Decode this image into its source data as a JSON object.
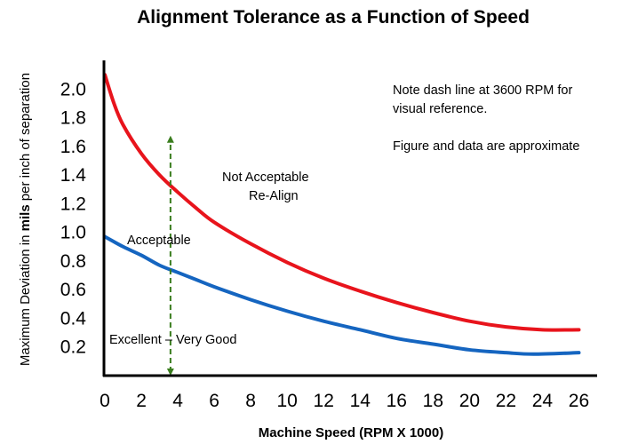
{
  "chart_data": {
    "type": "line",
    "title": "Alignment Tolerance as a Function of Speed",
    "xlabel": "Machine Speed (RPM  X 1000)",
    "ylabel_parts": [
      "Maximum Deviation in ",
      "mils",
      " per inch of separation"
    ],
    "xlim": [
      0,
      27
    ],
    "ylim": [
      0,
      2.2
    ],
    "x_ticks": [
      0,
      2,
      4,
      6,
      8,
      10,
      12,
      14,
      16,
      18,
      20,
      22,
      24,
      26
    ],
    "x_tick_labels": [
      "0",
      "2",
      "4",
      "6",
      "8",
      "10",
      "12",
      "14",
      "16",
      "18",
      "20",
      "22",
      "24",
      "26"
    ],
    "y_ticks": [
      0.2,
      0.4,
      0.6,
      0.8,
      1.0,
      1.2,
      1.4,
      1.6,
      1.8,
      2.0
    ],
    "y_tick_labels": [
      "0.2",
      "0.4",
      "0.6",
      "0.8",
      "1.0",
      "1.2",
      "1.4",
      "1.6",
      "1.8",
      "2.0"
    ],
    "grid": false,
    "series": [
      {
        "color": "#e8141c",
        "x": [
          0,
          0.5,
          1,
          2,
          3,
          4,
          5,
          6,
          8,
          10,
          12,
          14,
          16,
          18,
          20,
          22,
          24,
          26
        ],
        "y": [
          2.1,
          1.9,
          1.75,
          1.55,
          1.4,
          1.28,
          1.17,
          1.07,
          0.92,
          0.79,
          0.68,
          0.59,
          0.51,
          0.44,
          0.38,
          0.34,
          0.32,
          0.32
        ]
      },
      {
        "color": "#1565c0",
        "x": [
          0,
          1,
          2,
          3,
          4,
          5,
          6,
          8,
          10,
          12,
          14,
          16,
          18,
          20,
          22,
          23.5,
          26
        ],
        "y": [
          0.97,
          0.9,
          0.84,
          0.77,
          0.72,
          0.67,
          0.62,
          0.53,
          0.45,
          0.38,
          0.32,
          0.26,
          0.22,
          0.18,
          0.16,
          0.15,
          0.16
        ]
      }
    ],
    "reference_line": {
      "x": 3.6,
      "y_range": [
        0,
        1.65
      ],
      "color": "#3a7d1e",
      "style": "dashed",
      "arrows": "both"
    },
    "annotations": {
      "not_acceptable": [
        "Not Acceptable",
        "Re-Align"
      ],
      "acceptable": "Acceptable",
      "excellent": "Excellent – Very Good",
      "note_lines": [
        "Note dash line at 3600 RPM for",
        "visual  reference."
      ],
      "approximate": "Figure and data are approximate"
    }
  }
}
